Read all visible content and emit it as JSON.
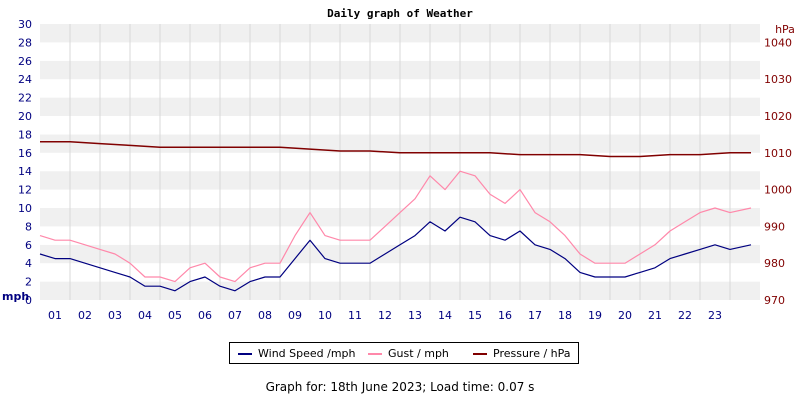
{
  "chart_data": {
    "type": "line",
    "title": "Daily graph of Weather",
    "x_tick_labels": [
      "01",
      "02",
      "03",
      "04",
      "05",
      "06",
      "07",
      "08",
      "09",
      "10",
      "11",
      "12",
      "13",
      "14",
      "15",
      "16",
      "17",
      "18",
      "19",
      "20",
      "21",
      "22",
      "23"
    ],
    "xlim_hours": [
      0,
      24
    ],
    "left_axis": {
      "unit": "mph",
      "ylim": [
        0,
        30
      ],
      "ticks": [
        0,
        2,
        4,
        6,
        8,
        10,
        12,
        14,
        16,
        18,
        20,
        22,
        24,
        26,
        28,
        30
      ]
    },
    "right_axis": {
      "unit": "hPa",
      "ylim": [
        970,
        1045
      ],
      "ticks": [
        970,
        980,
        990,
        1000,
        1010,
        1020,
        1030,
        1040
      ]
    },
    "grid": "horizontal bands with vertical lines at hours",
    "legend_placement": "bottom-center",
    "series": [
      {
        "name": "Wind Speed /mph",
        "axis": "left",
        "color": "#000080",
        "x": [
          0,
          0.5,
          1,
          1.5,
          2,
          2.5,
          3,
          3.5,
          4,
          4.5,
          5,
          5.5,
          6,
          6.5,
          7,
          7.5,
          8,
          8.5,
          9,
          9.5,
          10,
          10.5,
          11,
          11.5,
          12,
          12.5,
          13,
          13.5,
          14,
          14.5,
          15,
          15.5,
          16,
          16.5,
          17,
          17.5,
          18,
          18.5,
          19,
          19.5,
          20,
          20.5,
          21,
          21.5,
          22,
          22.5,
          23,
          23.7
        ],
        "y": [
          5,
          4.5,
          4.5,
          4,
          3.5,
          3,
          2.5,
          1.5,
          1.5,
          1,
          2,
          2.5,
          1.5,
          1,
          2,
          2.5,
          2.5,
          4.5,
          6.5,
          4.5,
          4,
          4,
          4,
          5,
          6,
          7,
          8.5,
          7.5,
          9,
          8.5,
          7,
          6.5,
          7.5,
          6,
          5.5,
          4.5,
          3,
          2.5,
          2.5,
          2.5,
          3,
          3.5,
          4.5,
          5,
          5.5,
          6,
          5.5,
          6
        ]
      },
      {
        "name": "Gust / mph",
        "axis": "left",
        "color": "#ff88aa",
        "x": [
          0,
          0.5,
          1,
          1.5,
          2,
          2.5,
          3,
          3.5,
          4,
          4.5,
          5,
          5.5,
          6,
          6.5,
          7,
          7.5,
          8,
          8.5,
          9,
          9.5,
          10,
          10.5,
          11,
          11.5,
          12,
          12.5,
          13,
          13.5,
          14,
          14.5,
          15,
          15.5,
          16,
          16.5,
          17,
          17.5,
          18,
          18.5,
          19,
          19.5,
          20,
          20.5,
          21,
          21.5,
          22,
          22.5,
          23,
          23.7
        ],
        "y": [
          7,
          6.5,
          6.5,
          6,
          5.5,
          5,
          4,
          2.5,
          2.5,
          2,
          3.5,
          4,
          2.5,
          2,
          3.5,
          4,
          4,
          7,
          9.5,
          7,
          6.5,
          6.5,
          6.5,
          8,
          9.5,
          11,
          13.5,
          12,
          14,
          13.5,
          11.5,
          10.5,
          12,
          9.5,
          8.5,
          7,
          5,
          4,
          4,
          4,
          5,
          6,
          7.5,
          8.5,
          9.5,
          10,
          9.5,
          10
        ]
      },
      {
        "name": "Pressure / hPa",
        "axis": "right",
        "color": "#800000",
        "x": [
          0,
          1,
          2,
          3,
          4,
          5,
          6,
          7,
          8,
          9,
          10,
          11,
          12,
          13,
          14,
          15,
          16,
          17,
          18,
          19,
          20,
          21,
          22,
          23,
          23.7
        ],
        "y": [
          1013,
          1013,
          1012.5,
          1012,
          1011.5,
          1011.5,
          1011.5,
          1011.5,
          1011.5,
          1011,
          1010.5,
          1010.5,
          1010,
          1010,
          1010,
          1010,
          1009.5,
          1009.5,
          1009.5,
          1009,
          1009,
          1009.5,
          1009.5,
          1010,
          1010
        ]
      }
    ]
  },
  "legend": [
    {
      "label": "Wind Speed /mph",
      "color": "#000080"
    },
    {
      "label": "Gust / mph",
      "color": "#ff88aa"
    },
    {
      "label": "Pressure / hPa",
      "color": "#800000"
    }
  ],
  "footer": "Graph for: 18th June 2023; Load time: 0.07 s",
  "colors": {
    "left_axis_text": "#000080",
    "right_axis_text": "#800000",
    "band_gray": "#f0f0f0",
    "grid": "#d8d8d8"
  }
}
